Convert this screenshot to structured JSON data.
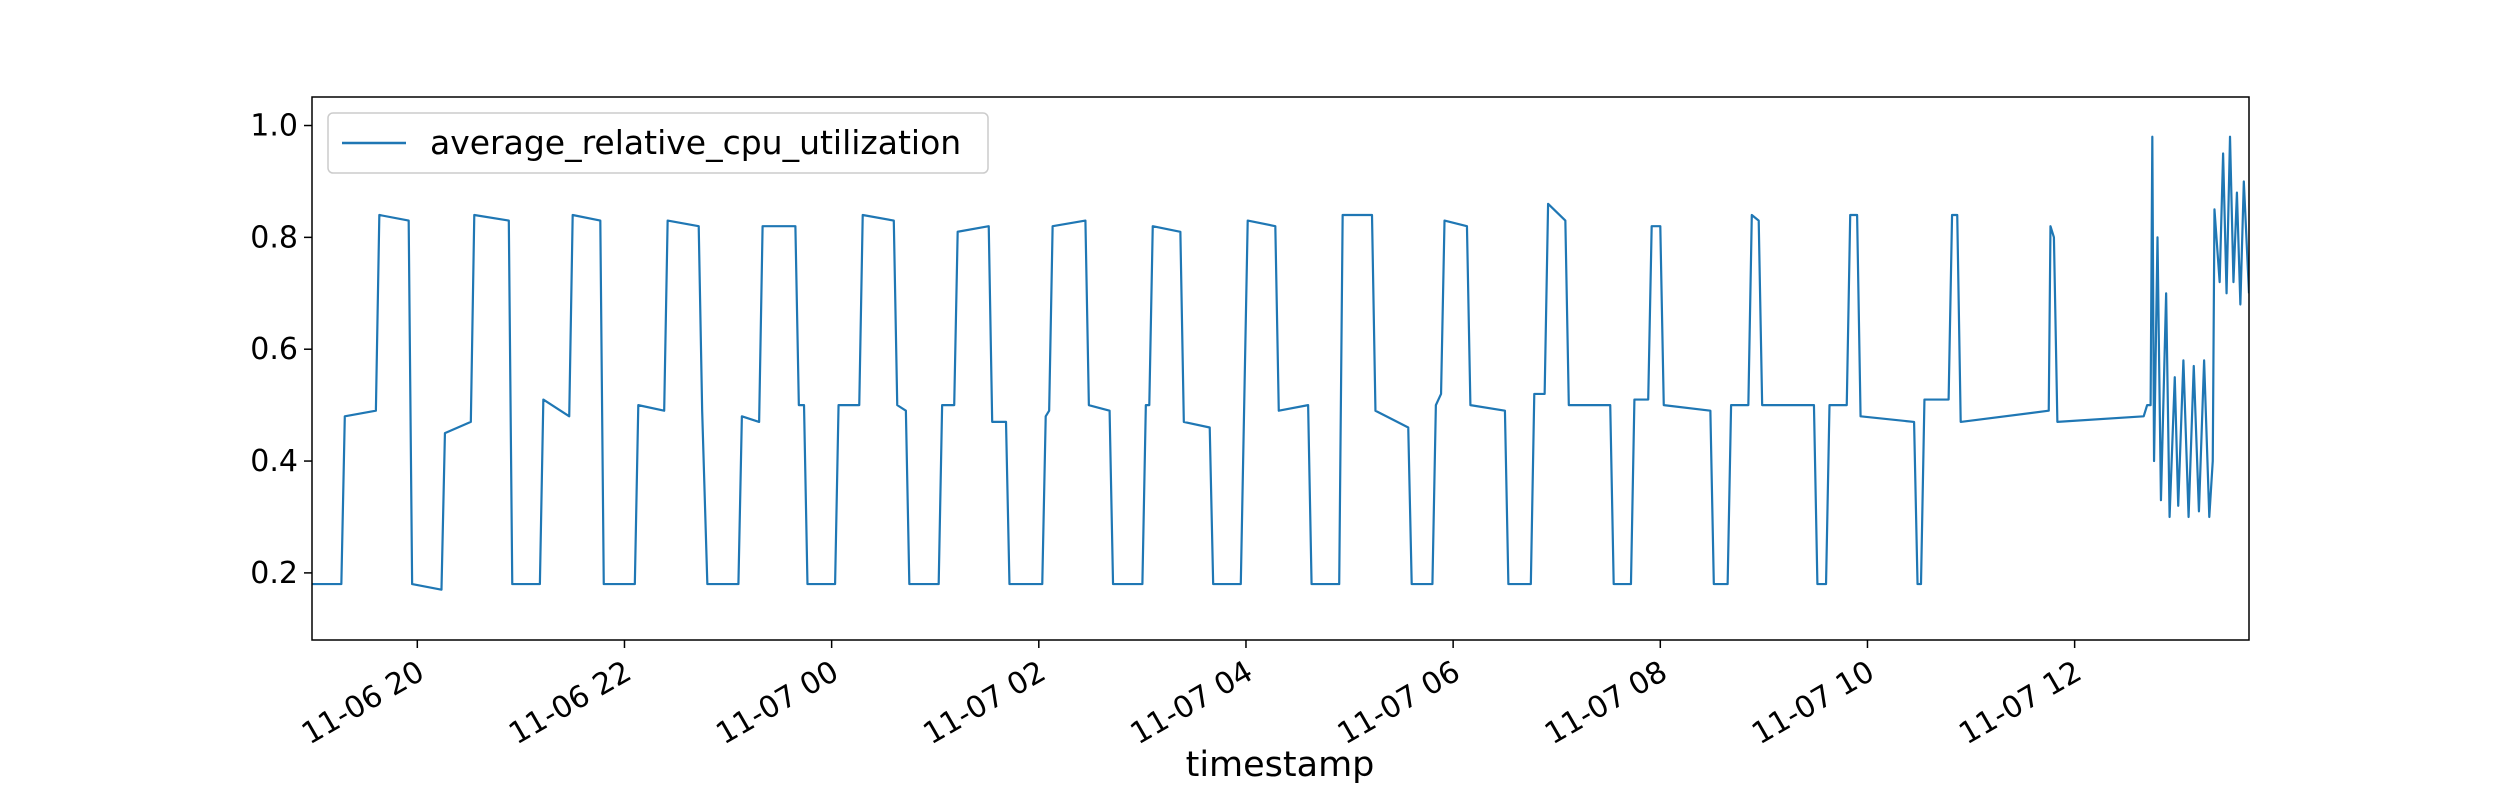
{
  "chart_data": {
    "type": "line",
    "xlabel": "timestamp",
    "legend": "upper left",
    "grid": false,
    "xlim": [
      "11-06 18:59",
      "11-07 13:41"
    ],
    "xticks": [
      {
        "value": "11-06 20:00",
        "label": "11-06 20"
      },
      {
        "value": "11-06 22:00",
        "label": "11-06 22"
      },
      {
        "value": "11-07 00:00",
        "label": "11-07 00"
      },
      {
        "value": "11-07 02:00",
        "label": "11-07 02"
      },
      {
        "value": "11-07 04:00",
        "label": "11-07 04"
      },
      {
        "value": "11-07 06:00",
        "label": "11-07 06"
      },
      {
        "value": "11-07 08:00",
        "label": "11-07 08"
      },
      {
        "value": "11-07 10:00",
        "label": "11-07 10"
      },
      {
        "value": "11-07 12:00",
        "label": "11-07 12"
      }
    ],
    "ylim": [
      0.08,
      1.051
    ],
    "yticks": [
      0.2,
      0.4,
      0.6,
      0.8,
      {
        "value": 1,
        "label": "1.0"
      }
    ],
    "x": [
      "11-06 18:59",
      "11-06 19:16",
      "11-06 19:18",
      "11-06 19:36",
      "11-06 19:38",
      "11-06 19:55",
      "11-06 19:57",
      "11-06 20:14",
      "11-06 20:16",
      "11-06 20:31",
      "11-06 20:33",
      "11-06 20:53",
      "11-06 20:55",
      "11-06 21:11",
      "11-06 21:13",
      "11-06 21:28",
      "11-06 21:30",
      "11-06 21:46",
      "11-06 21:48",
      "11-06 22:06",
      "11-06 22:08",
      "11-06 22:23",
      "11-06 22:25",
      "11-06 22:43",
      "11-06 22:45",
      "11-06 22:48",
      "11-06 23:06",
      "11-06 23:08",
      "11-06 23:18",
      "11-06 23:20",
      "11-06 23:39",
      "11-06 23:41",
      "11-06 23:44",
      "11-06 23:46",
      "11-07 00:02",
      "11-07 00:04",
      "11-07 00:16",
      "11-07 00:18",
      "11-07 00:36",
      "11-07 00:38",
      "11-07 00:43",
      "11-07 00:45",
      "11-07 01:02",
      "11-07 01:04",
      "11-07 01:11",
      "11-07 01:13",
      "11-07 01:31",
      "11-07 01:33",
      "11-07 01:41",
      "11-07 01:43",
      "11-07 02:02",
      "11-07 02:04",
      "11-07 02:06",
      "11-07 02:08",
      "11-07 02:27",
      "11-07 02:29",
      "11-07 02:41",
      "11-07 02:43",
      "11-07 03:00",
      "11-07 03:02",
      "11-07 03:04",
      "11-07 03:06",
      "11-07 03:22",
      "11-07 03:24",
      "11-07 03:39",
      "11-07 03:41",
      "11-07 03:57",
      "11-07 04:01",
      "11-07 04:17",
      "11-07 04:19",
      "11-07 04:36",
      "11-07 04:38",
      "11-07 04:54",
      "11-07 04:56",
      "11-07 05:13",
      "11-07 05:15",
      "11-07 05:34",
      "11-07 05:36",
      "11-07 05:48",
      "11-07 05:50",
      "11-07 05:53",
      "11-07 05:55",
      "11-07 06:08",
      "11-07 06:10",
      "11-07 06:30",
      "11-07 06:32",
      "11-07 06:45",
      "11-07 06:47",
      "11-07 06:53",
      "11-07 06:55",
      "11-07 07:05",
      "11-07 07:07",
      "11-07 07:31",
      "11-07 07:33",
      "11-07 07:43",
      "11-07 07:45",
      "11-07 07:53",
      "11-07 07:55",
      "11-07 08:00",
      "11-07 08:02",
      "11-07 08:29",
      "11-07 08:31",
      "11-07 08:39",
      "11-07 08:41",
      "11-07 08:51",
      "11-07 08:53",
      "11-07 08:57",
      "11-07 08:59",
      "11-07 09:29",
      "11-07 09:31",
      "11-07 09:36",
      "11-07 09:38",
      "11-07 09:48",
      "11-07 09:50",
      "11-07 09:54",
      "11-07 09:56",
      "11-07 10:27",
      "11-07 10:29",
      "11-07 10:31",
      "11-07 10:33",
      "11-07 10:47",
      "11-07 10:49",
      "11-07 10:52",
      "11-07 10:54",
      "11-07 11:45",
      "11-07 11:46",
      "11-07 11:48",
      "11-07 11:50",
      "11-07 12:40",
      "11-07 12:42",
      "11-07 12:44",
      "11-07 12:45",
      "11-07 12:46",
      "11-07 12:48",
      "11-07 12:50",
      "11-07 12:53",
      "11-07 12:55",
      "11-07 12:58",
      "11-07 13:00",
      "11-07 13:03",
      "11-07 13:06",
      "11-07 13:09",
      "11-07 13:12",
      "11-07 13:15",
      "11-07 13:18",
      "11-07 13:20",
      "11-07 13:21",
      "11-07 13:24",
      "11-07 13:26",
      "11-07 13:28",
      "11-07 13:30",
      "11-07 13:32",
      "11-07 13:34",
      "11-07 13:36",
      "11-07 13:38",
      "11-07 13:41"
    ],
    "series": [
      {
        "name": "average_relative_cpu_utilization",
        "color": "#1f77b4",
        "values": [
          0.18,
          0.18,
          0.48,
          0.49,
          0.84,
          0.83,
          0.18,
          0.17,
          0.45,
          0.47,
          0.84,
          0.83,
          0.18,
          0.18,
          0.51,
          0.48,
          0.84,
          0.83,
          0.18,
          0.18,
          0.5,
          0.49,
          0.83,
          0.82,
          0.49,
          0.18,
          0.18,
          0.48,
          0.47,
          0.82,
          0.82,
          0.5,
          0.5,
          0.18,
          0.18,
          0.5,
          0.5,
          0.84,
          0.83,
          0.5,
          0.49,
          0.18,
          0.18,
          0.5,
          0.5,
          0.81,
          0.82,
          0.47,
          0.47,
          0.18,
          0.18,
          0.48,
          0.49,
          0.82,
          0.83,
          0.5,
          0.49,
          0.18,
          0.18,
          0.5,
          0.5,
          0.82,
          0.81,
          0.47,
          0.46,
          0.18,
          0.18,
          0.83,
          0.82,
          0.49,
          0.5,
          0.18,
          0.18,
          0.84,
          0.84,
          0.49,
          0.46,
          0.18,
          0.18,
          0.5,
          0.52,
          0.83,
          0.82,
          0.5,
          0.49,
          0.18,
          0.18,
          0.52,
          0.52,
          0.86,
          0.83,
          0.5,
          0.5,
          0.18,
          0.18,
          0.51,
          0.51,
          0.82,
          0.82,
          0.5,
          0.49,
          0.18,
          0.18,
          0.5,
          0.5,
          0.84,
          0.83,
          0.5,
          0.5,
          0.18,
          0.18,
          0.5,
          0.5,
          0.84,
          0.84,
          0.48,
          0.47,
          0.18,
          0.18,
          0.51,
          0.51,
          0.84,
          0.84,
          0.47,
          0.49,
          0.82,
          0.8,
          0.47,
          0.48,
          0.5,
          0.5,
          0.98,
          0.4,
          0.8,
          0.33,
          0.7,
          0.3,
          0.55,
          0.32,
          0.58,
          0.3,
          0.57,
          0.31,
          0.58,
          0.3,
          0.4,
          0.85,
          0.72,
          0.95,
          0.7,
          0.98,
          0.72,
          0.88,
          0.68,
          0.9,
          0.7
        ]
      }
    ]
  }
}
